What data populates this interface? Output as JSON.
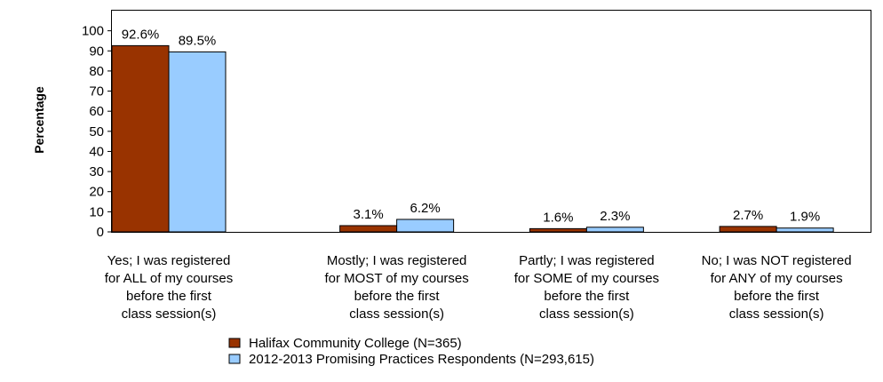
{
  "chart_data": {
    "type": "bar",
    "ylabel": "Percentage",
    "ylim": [
      0,
      110
    ],
    "yticks": [
      0,
      10,
      20,
      30,
      40,
      50,
      60,
      70,
      80,
      90,
      100
    ],
    "categories": [
      [
        "Yes; I was registered",
        "for ALL of my courses",
        "before the first",
        "class session(s)"
      ],
      [
        "Mostly; I was registered",
        "for MOST of my courses",
        "before the first",
        "class session(s)"
      ],
      [
        "Partly; I was registered",
        "for SOME of my courses",
        "before the first",
        "class session(s)"
      ],
      [
        "No; I was NOT registered",
        "for ANY of my courses",
        "before the first",
        "class session(s)"
      ]
    ],
    "series": [
      {
        "name": "Halifax  Community College (N=365)",
        "color": "#993300",
        "values": [
          92.6,
          3.1,
          1.6,
          2.7
        ],
        "labels": [
          "92.6%",
          "3.1%",
          "1.6%",
          "2.7%"
        ]
      },
      {
        "name": "2012-2013 Promising Practices Respondents (N=293,615)",
        "color": "#99ccff",
        "values": [
          89.5,
          6.2,
          2.3,
          1.9
        ],
        "labels": [
          "89.5%",
          "6.2%",
          "2.3%",
          "1.9%"
        ]
      }
    ],
    "legend_position": "bottom",
    "grid": false
  }
}
